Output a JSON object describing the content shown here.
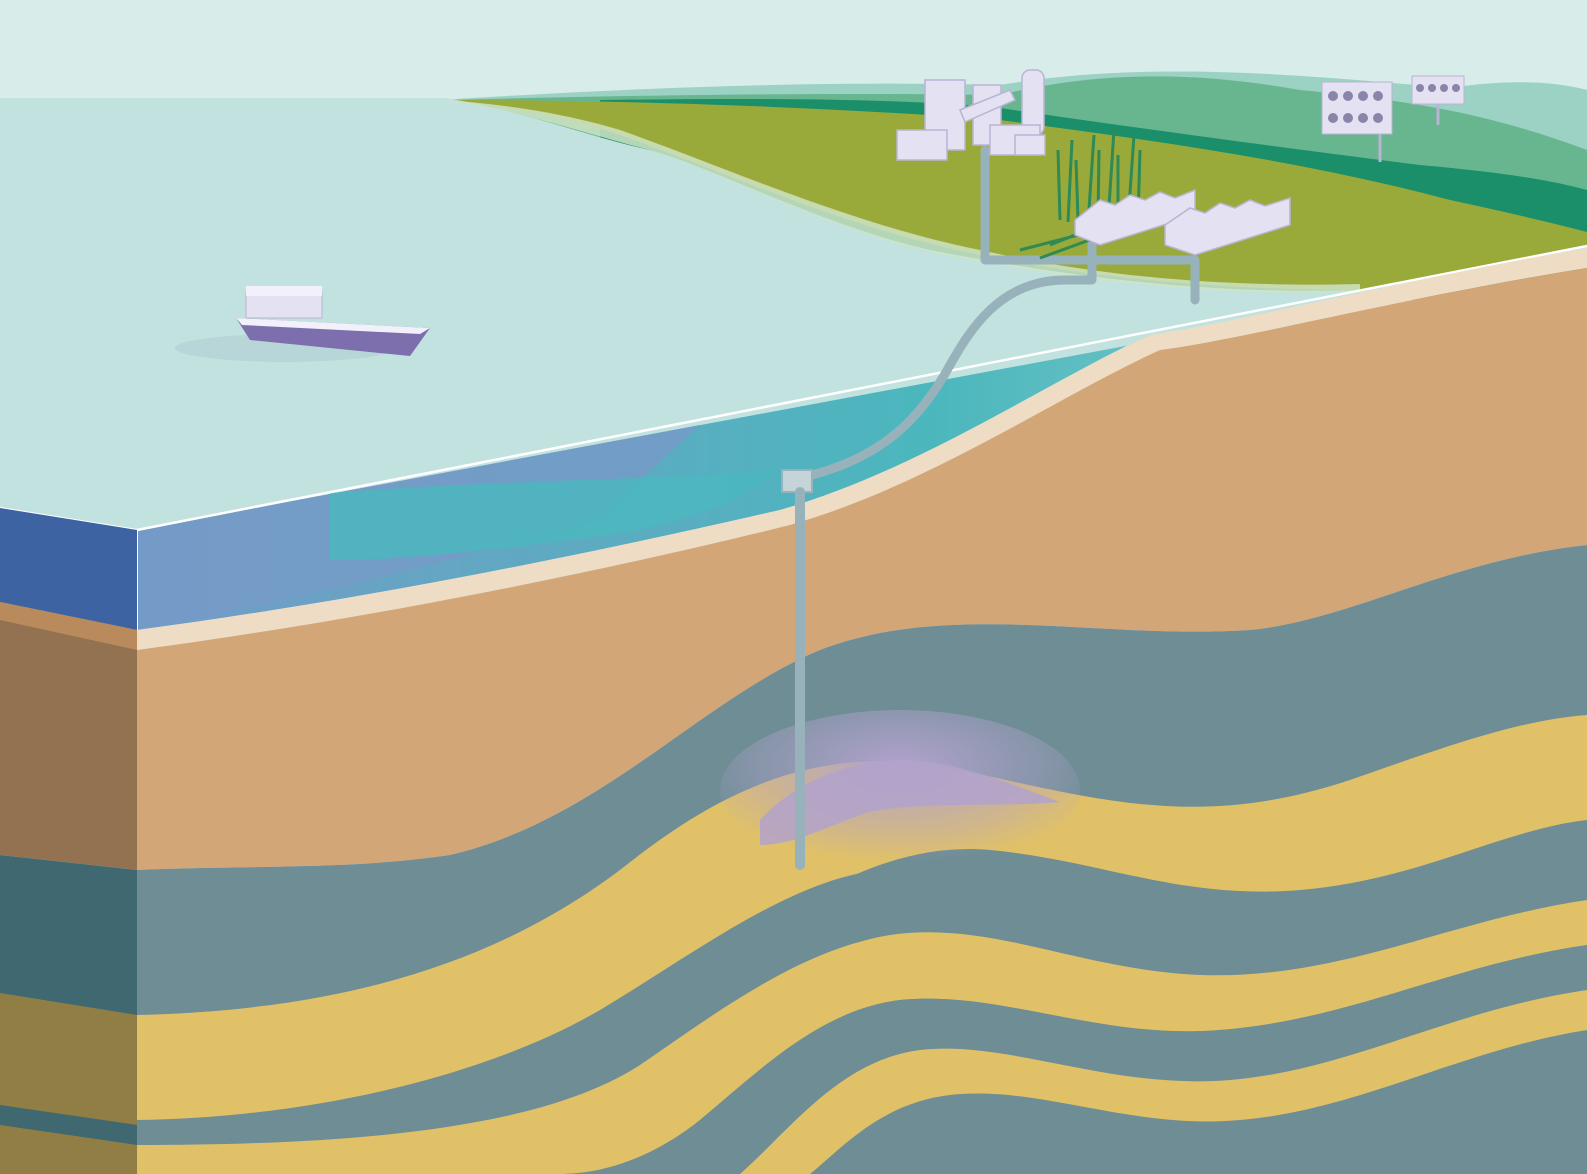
{
  "colors": {
    "sky": "#d8ecea",
    "sea": "#c2e2e0",
    "sea_deep": "#4bb7bd",
    "sea_front": "#749bc7",
    "sea_side": "#3e63a3",
    "hill_far": "#9bd2c4",
    "hill_mid": "#68b68f",
    "hill_dark": "#1a8f6a",
    "land": "#9aaa3a",
    "beach": "#efdcc4",
    "sand_layer": "#d3a677",
    "sand_layer_side": "#937252",
    "rock_layer": "#6e8d95",
    "rock_layer_side": "#3f6870",
    "reservoir_layer": "#e0c168",
    "reservoir_layer_side": "#917e44",
    "co2_plume": "#b1a2cc",
    "pipeline": "#97b2ba",
    "buildings": "#e4e1f2",
    "ship_hull": "#7d6ead",
    "ship_deck": "#f2f0fa"
  },
  "labels": []
}
